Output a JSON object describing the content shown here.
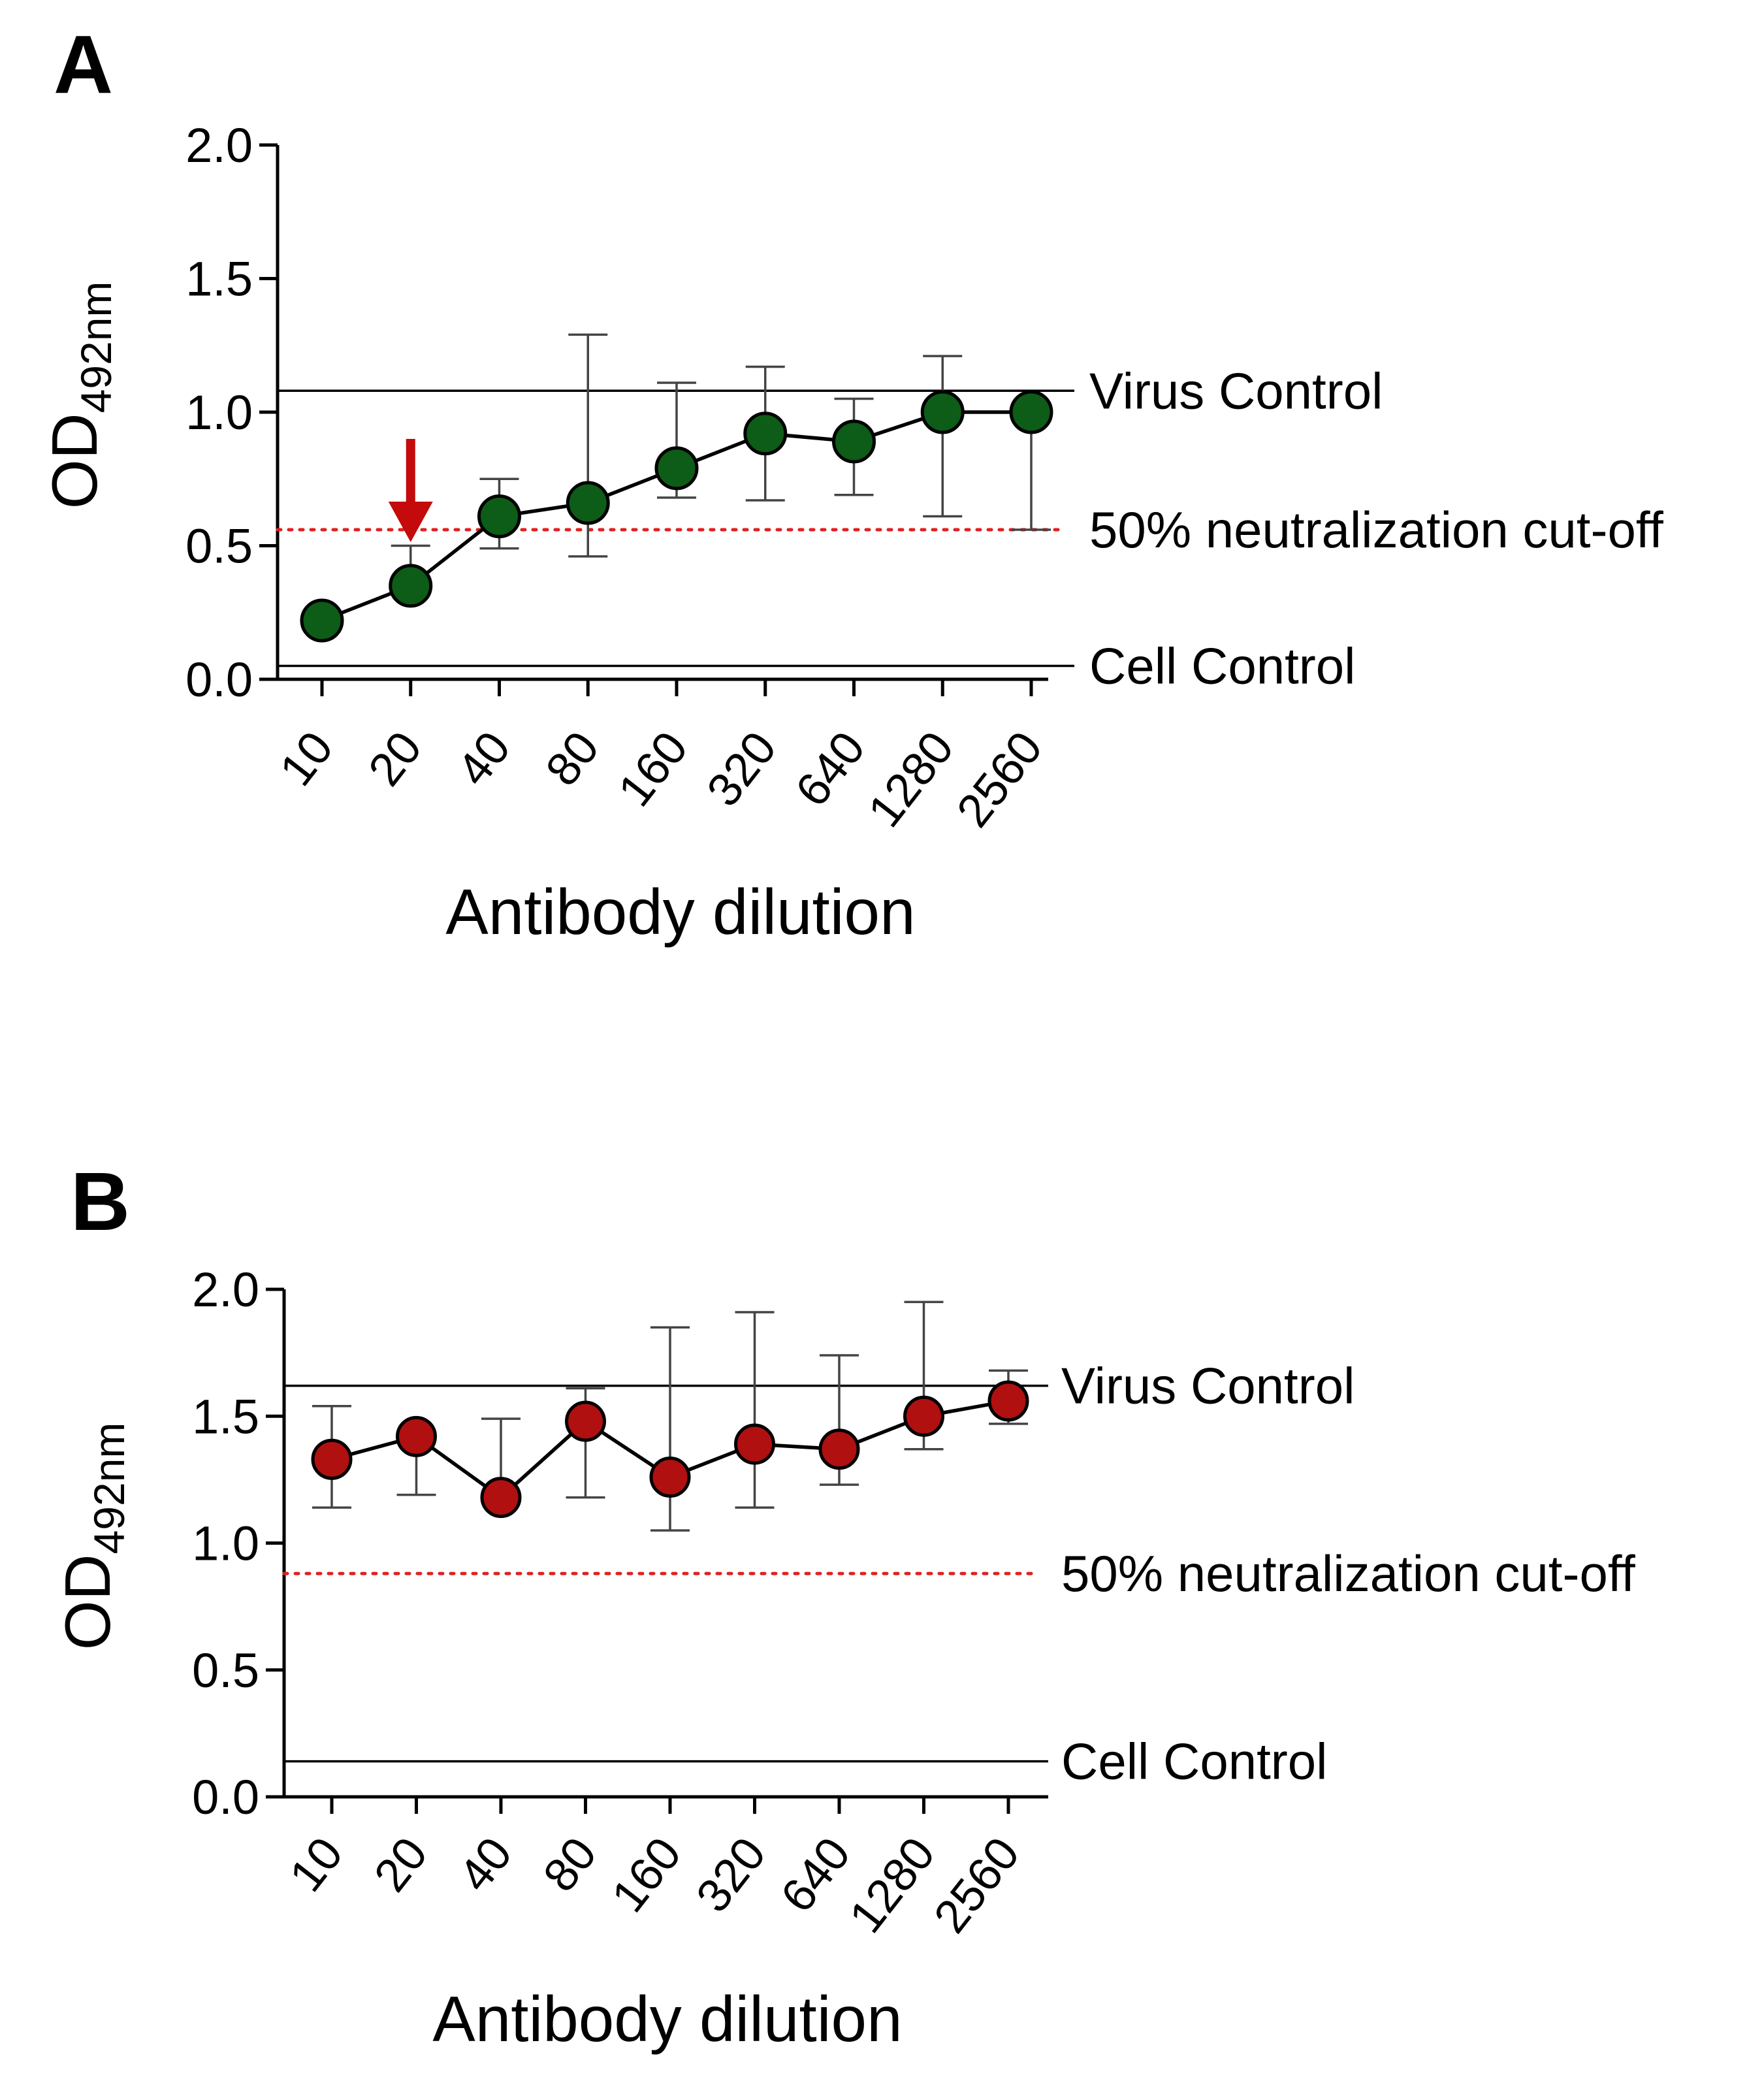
{
  "chart_data": [
    {
      "panel": "A",
      "type": "scatter",
      "xlabel": "Antibody dilution",
      "ylabel_main": "OD",
      "ylabel_sub": "492nm",
      "ylim": [
        0,
        2.0
      ],
      "y_ticks": [
        "0.0",
        "0.5",
        "1.0",
        "1.5",
        "2.0"
      ],
      "categories": [
        "10",
        "20",
        "40",
        "80",
        "160",
        "320",
        "640",
        "1280",
        "2560"
      ],
      "series": [
        {
          "name": "OD492nm",
          "color": "#0d5c17",
          "values": [
            0.22,
            0.35,
            0.61,
            0.66,
            0.79,
            0.92,
            0.89,
            1.0,
            1.0
          ],
          "error_upper": [
            0.22,
            0.5,
            0.75,
            1.29,
            1.11,
            1.17,
            1.05,
            1.21,
            1.0
          ],
          "error_lower": [
            0.22,
            0.35,
            0.49,
            0.46,
            0.68,
            0.67,
            0.69,
            0.61,
            0.56
          ]
        }
      ],
      "reference_lines": [
        {
          "label": "Virus Control",
          "y": 1.08,
          "style": "solid"
        },
        {
          "label": "50% neutralization cut-off",
          "y": 0.56,
          "style": "dotted-red"
        },
        {
          "label": "Cell Control",
          "y": 0.05,
          "style": "solid"
        }
      ],
      "annotation": {
        "type": "arrow",
        "target_category": "20",
        "color": "#c40a0a"
      }
    },
    {
      "panel": "B",
      "type": "scatter",
      "xlabel": "Antibody dilution",
      "ylabel_main": "OD",
      "ylabel_sub": "492nm",
      "ylim": [
        0,
        2.0
      ],
      "y_ticks": [
        "0.0",
        "0.5",
        "1.0",
        "1.5",
        "2.0"
      ],
      "categories": [
        "10",
        "20",
        "40",
        "80",
        "160",
        "320",
        "640",
        "1280",
        "2560"
      ],
      "series": [
        {
          "name": "OD492nm",
          "color": "#b01010",
          "values": [
            1.33,
            1.42,
            1.18,
            1.48,
            1.26,
            1.39,
            1.37,
            1.5,
            1.56
          ],
          "error_upper": [
            1.54,
            1.42,
            1.49,
            1.61,
            1.85,
            1.91,
            1.74,
            1.95,
            1.68
          ],
          "error_lower": [
            1.14,
            1.19,
            1.18,
            1.18,
            1.05,
            1.14,
            1.23,
            1.37,
            1.47
          ]
        }
      ],
      "reference_lines": [
        {
          "label": "Virus Control",
          "y": 1.62,
          "style": "solid"
        },
        {
          "label": "50% neutralization cut-off",
          "y": 0.88,
          "style": "dotted-red"
        },
        {
          "label": "Cell Control",
          "y": 0.14,
          "style": "solid"
        }
      ]
    }
  ]
}
